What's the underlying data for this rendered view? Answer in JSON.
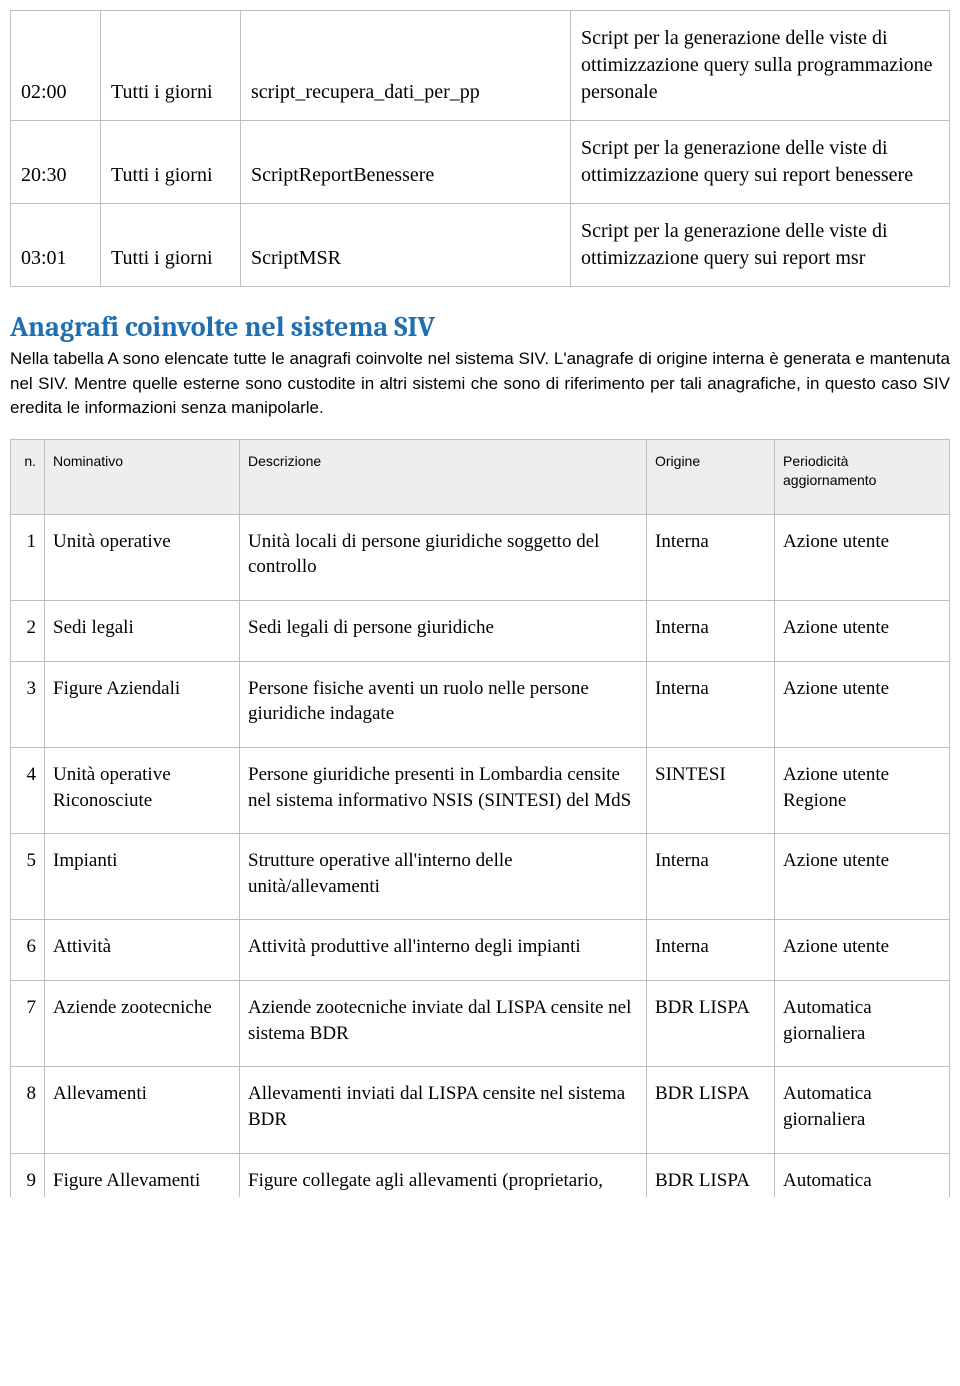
{
  "scripts_table": {
    "rows": [
      {
        "time": "02:00",
        "freq": "Tutti i giorni",
        "name": "script_recupera_dati_per_pp",
        "desc": "Script per la generazione delle viste di ottimizzazione query sulla programmazione personale"
      },
      {
        "time": "20:30",
        "freq": "Tutti i giorni",
        "name": "ScriptReportBenessere",
        "desc": "Script per la generazione delle viste di ottimizzazione query sui report benessere"
      },
      {
        "time": "03:01",
        "freq": "Tutti i giorni",
        "name": "ScriptMSR",
        "desc": "Script per la generazione delle viste di ottimizzazione query sui report msr"
      }
    ]
  },
  "section": {
    "heading": "Anagrafi coinvolte nel sistema SIV",
    "paragraph": "Nella tabella A sono elencate tutte le anagrafi coinvolte nel sistema SIV. L'anagrafe di origine interna è generata e mantenuta nel SIV. Mentre quelle esterne sono custodite in altri sistemi che sono di riferimento per tali anagrafiche, in questo caso SIV eredita le informazioni senza manipolarle."
  },
  "anagrafi_table": {
    "headers": {
      "n": "n.",
      "nom": "Nominativo",
      "desc": "Descrizione",
      "orig": "Origine",
      "per": "Periodicità aggiornamento"
    },
    "rows": [
      {
        "n": "1",
        "nom": "Unità operative",
        "desc": "Unità locali di persone giuridiche soggetto del controllo",
        "orig": "Interna",
        "per": "Azione utente"
      },
      {
        "n": "2",
        "nom": "Sedi legali",
        "desc": "Sedi legali di persone giuridiche",
        "orig": "Interna",
        "per": "Azione utente"
      },
      {
        "n": "3",
        "nom": "Figure Aziendali",
        "desc": "Persone fisiche aventi un ruolo nelle persone giuridiche indagate",
        "orig": "Interna",
        "per": "Azione utente"
      },
      {
        "n": "4",
        "nom": "Unità operative Riconosciute",
        "desc": "Persone giuridiche presenti in Lombardia censite nel sistema informativo NSIS (SINTESI) del MdS",
        "orig": "SINTESI",
        "per": "Azione utente Regione"
      },
      {
        "n": "5",
        "nom": "Impianti",
        "desc": "Strutture operative all'interno delle unità/allevamenti",
        "orig": "Interna",
        "per": "Azione utente"
      },
      {
        "n": "6",
        "nom": "Attività",
        "desc": "Attività produttive all'interno degli impianti",
        "orig": "Interna",
        "per": "Azione utente"
      },
      {
        "n": "7",
        "nom": "Aziende zootecniche",
        "desc": "Aziende zootecniche inviate dal LISPA censite nel sistema BDR",
        "orig": "BDR LISPA",
        "per": "Automatica giornaliera"
      },
      {
        "n": "8",
        "nom": "Allevamenti",
        "desc": "Allevamenti inviati dal LISPA censite nel sistema BDR",
        "orig": "BDR LISPA",
        "per": "Automatica giornaliera"
      },
      {
        "n": "9",
        "nom": "Figure Allevamenti",
        "desc": "Figure collegate agli allevamenti (proprietario,",
        "orig": "BDR LISPA",
        "per": "Automatica"
      }
    ]
  }
}
